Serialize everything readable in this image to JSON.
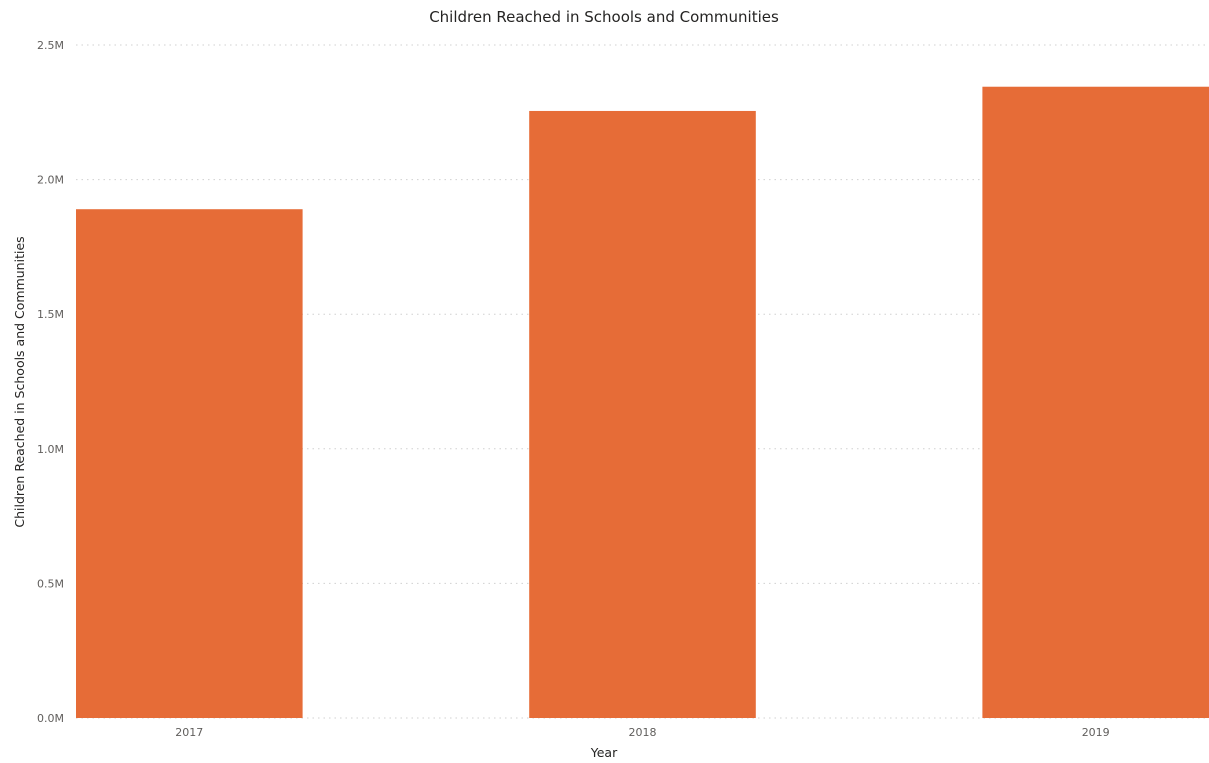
{
  "chart_data": {
    "type": "bar",
    "title": "Children Reached in Schools and Communities",
    "xlabel": "Year",
    "ylabel": "Children Reached in Schools and Communities",
    "categories": [
      "2017",
      "2018",
      "2019"
    ],
    "values": [
      1890000,
      2255000,
      2345000
    ],
    "ylim": [
      0,
      2500000
    ],
    "yticks": [
      {
        "value": 0,
        "label": "0.0M"
      },
      {
        "value": 500000,
        "label": "0.5M"
      },
      {
        "value": 1000000,
        "label": "1.0M"
      },
      {
        "value": 1500000,
        "label": "1.5M"
      },
      {
        "value": 2000000,
        "label": "2.0M"
      },
      {
        "value": 2500000,
        "label": "2.5M"
      }
    ],
    "grid": true,
    "legend": "none",
    "bar_color": "#e66c37"
  }
}
